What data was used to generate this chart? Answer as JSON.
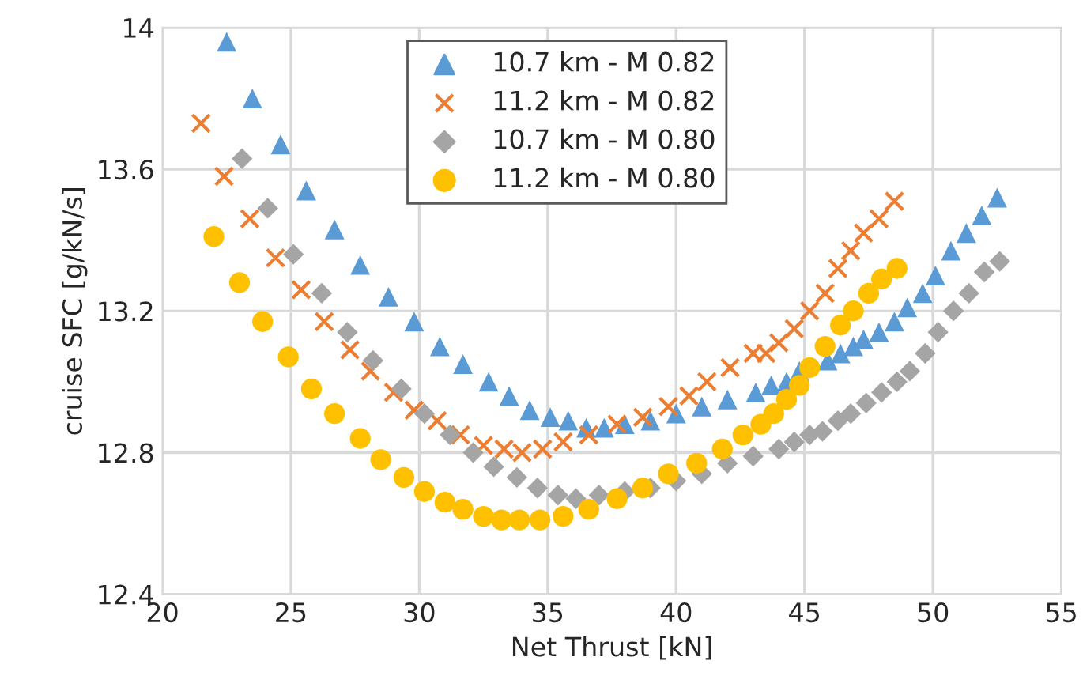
{
  "chart_data": {
    "type": "scatter",
    "xlabel": "Net Thrust [kN]",
    "ylabel": "cruise SFC [g/kN/s]",
    "xlim": [
      20,
      55
    ],
    "ylim": [
      12.4,
      14
    ],
    "xticks": [
      20,
      25,
      30,
      35,
      40,
      45,
      50,
      55
    ],
    "yticks": [
      12.4,
      12.8,
      13.2,
      13.6,
      14
    ],
    "grid": true,
    "legend": "top",
    "series": [
      {
        "name": "10.7 km - M 0.82",
        "color": "#5b9bd5",
        "marker": "triangle",
        "x": [
          22.5,
          23.5,
          24.6,
          25.6,
          26.7,
          27.7,
          28.8,
          29.8,
          30.8,
          31.7,
          32.7,
          33.5,
          34.3,
          35.1,
          35.8,
          36.5,
          37.2,
          38,
          39,
          40,
          41,
          42,
          43.1,
          43.7,
          44.3,
          44.8,
          45.9,
          46.4,
          46.9,
          47.3,
          47.9,
          48.5,
          49.0,
          49.6,
          50.1,
          50.7,
          51.3,
          51.9,
          52.5
        ],
        "values": [
          13.96,
          13.8,
          13.67,
          13.54,
          13.43,
          13.33,
          13.24,
          13.17,
          13.1,
          13.05,
          13.0,
          12.96,
          12.92,
          12.9,
          12.89,
          12.87,
          12.87,
          12.88,
          12.89,
          12.91,
          12.93,
          12.95,
          12.97,
          12.99,
          13.0,
          13.03,
          13.06,
          13.08,
          13.1,
          13.12,
          13.14,
          13.17,
          13.21,
          13.25,
          13.3,
          13.37,
          13.42,
          13.47,
          13.52
        ]
      },
      {
        "name": "11.2 km - M 0.82",
        "color": "#ed7d31",
        "marker": "cross",
        "x": [
          21.5,
          22.4,
          23.4,
          24.4,
          25.4,
          26.3,
          27.3,
          28.1,
          29.0,
          29.8,
          30.7,
          31.6,
          32.5,
          33.3,
          34.0,
          34.8,
          35.6,
          36.6,
          37.7,
          38.7,
          39.7,
          40.5,
          41.2,
          42.1,
          43.0,
          43.5,
          44.0,
          44.6,
          45.2,
          45.8,
          46.3,
          46.8,
          47.3,
          47.9,
          48.5
        ],
        "values": [
          13.73,
          13.58,
          13.46,
          13.35,
          13.26,
          13.17,
          13.09,
          13.03,
          12.97,
          12.92,
          12.89,
          12.85,
          12.82,
          12.81,
          12.8,
          12.81,
          12.83,
          12.85,
          12.88,
          12.9,
          12.93,
          12.96,
          13.0,
          13.04,
          13.08,
          13.08,
          13.11,
          13.15,
          13.2,
          13.25,
          13.32,
          13.37,
          13.42,
          13.46,
          13.51
        ]
      },
      {
        "name": "10.7 km - M 0.80",
        "color": "#a5a5a5",
        "marker": "diamond",
        "x": [
          23.1,
          24.1,
          25.1,
          26.2,
          27.2,
          28.2,
          29.3,
          30.2,
          31.2,
          32.1,
          32.9,
          33.8,
          34.6,
          35.4,
          36.1,
          37,
          38,
          39,
          40,
          41,
          42,
          43,
          44.0,
          44.6,
          45.2,
          45.7,
          46.3,
          46.8,
          47.4,
          48.0,
          48.6,
          49.1,
          49.7,
          50.2,
          50.8,
          51.4,
          52.0,
          52.6
        ],
        "values": [
          13.63,
          13.49,
          13.36,
          13.25,
          13.14,
          13.06,
          12.98,
          12.91,
          12.85,
          12.8,
          12.76,
          12.73,
          12.7,
          12.68,
          12.67,
          12.68,
          12.69,
          12.7,
          12.72,
          12.74,
          12.77,
          12.79,
          12.81,
          12.83,
          12.85,
          12.86,
          12.89,
          12.91,
          12.94,
          12.97,
          13.0,
          13.03,
          13.08,
          13.14,
          13.2,
          13.25,
          13.31,
          13.34
        ]
      },
      {
        "name": "11.2 km - M 0.80",
        "color": "#ffc000",
        "marker": "circle",
        "x": [
          22.0,
          23.0,
          23.9,
          24.9,
          25.8,
          26.7,
          27.7,
          28.5,
          29.4,
          30.2,
          31.0,
          31.7,
          32.5,
          33.2,
          33.9,
          34.7,
          35.6,
          36.6,
          37.7,
          38.7,
          39.7,
          40.8,
          41.8,
          42.6,
          43.3,
          43.8,
          44.3,
          44.8,
          45.2,
          45.8,
          46.4,
          46.9,
          47.5,
          48.0,
          48.6
        ],
        "values": [
          13.41,
          13.28,
          13.17,
          13.07,
          12.98,
          12.91,
          12.84,
          12.78,
          12.73,
          12.69,
          12.66,
          12.64,
          12.62,
          12.61,
          12.61,
          12.61,
          12.62,
          12.64,
          12.67,
          12.7,
          12.74,
          12.77,
          12.81,
          12.85,
          12.88,
          12.91,
          12.95,
          12.99,
          13.04,
          13.1,
          13.16,
          13.2,
          13.25,
          13.29,
          13.32
        ]
      }
    ]
  }
}
